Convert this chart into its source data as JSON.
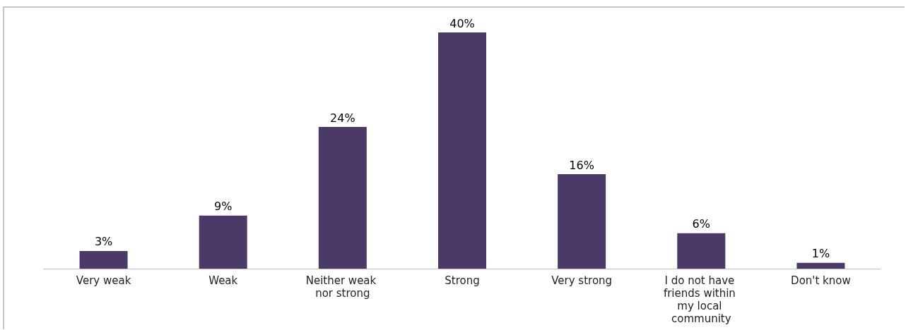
{
  "chart_data": {
    "type": "bar",
    "categories": [
      "Very weak",
      "Weak",
      "Neither weak nor strong",
      "Strong",
      "Very strong",
      "I do not have friends within my local community",
      "Don't know"
    ],
    "values": [
      3,
      9,
      24,
      40,
      16,
      6,
      1
    ],
    "value_labels": [
      "3%",
      "9%",
      "24%",
      "40%",
      "16%",
      "6%",
      "1%"
    ],
    "color": "#4b3a68",
    "grid": false
  }
}
